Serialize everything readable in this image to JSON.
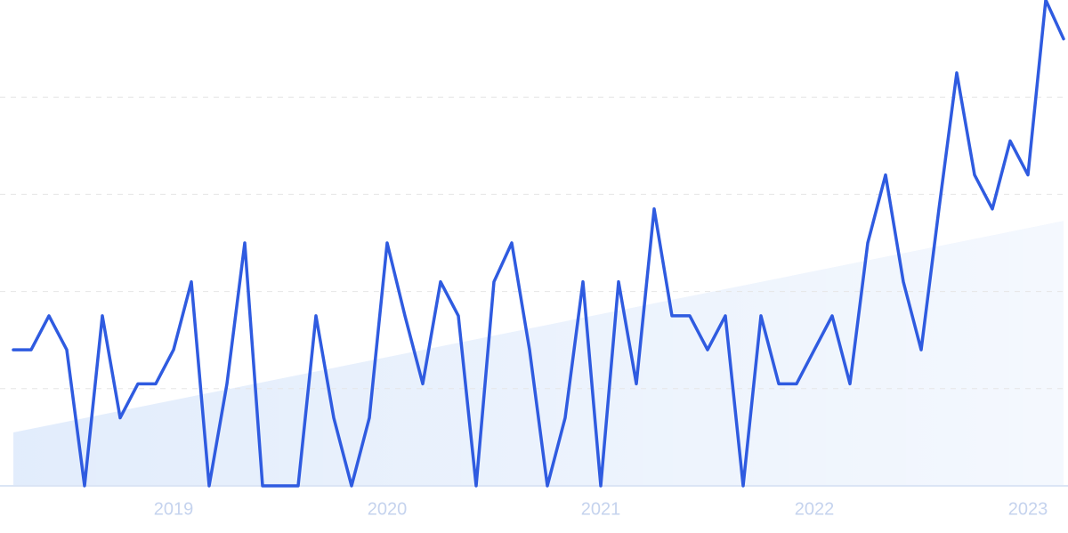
{
  "chart_data": {
    "type": "line",
    "categories": [
      null,
      null,
      null,
      null,
      null,
      null,
      null,
      null,
      null,
      "2019",
      null,
      null,
      null,
      null,
      null,
      null,
      null,
      null,
      null,
      null,
      null,
      "2020",
      null,
      null,
      null,
      null,
      null,
      null,
      null,
      null,
      null,
      null,
      null,
      "2021",
      null,
      null,
      null,
      null,
      null,
      null,
      null,
      null,
      null,
      null,
      null,
      "2022",
      null,
      null,
      null,
      null,
      null,
      null,
      null,
      null,
      null,
      null,
      null,
      "2023",
      null,
      null
    ],
    "values": [
      28,
      28,
      35,
      28,
      0,
      35,
      14,
      21,
      21,
      28,
      42,
      0,
      21,
      50,
      0,
      0,
      0,
      35,
      14,
      0,
      14,
      50,
      35,
      21,
      42,
      35,
      0,
      42,
      50,
      28,
      0,
      14,
      42,
      0,
      42,
      21,
      57,
      35,
      35,
      28,
      35,
      0,
      35,
      21,
      21,
      28,
      35,
      21,
      50,
      64,
      42,
      28,
      57,
      85,
      64,
      57,
      71,
      64,
      100,
      92
    ],
    "color": "#2f5be0",
    "trend_values": [
      11,
      54.5
    ],
    "trend_color": "#dbe8fb",
    "ylim": [
      0,
      100
    ],
    "yticks": [
      0,
      20,
      40,
      60,
      80
    ],
    "grid": true
  }
}
